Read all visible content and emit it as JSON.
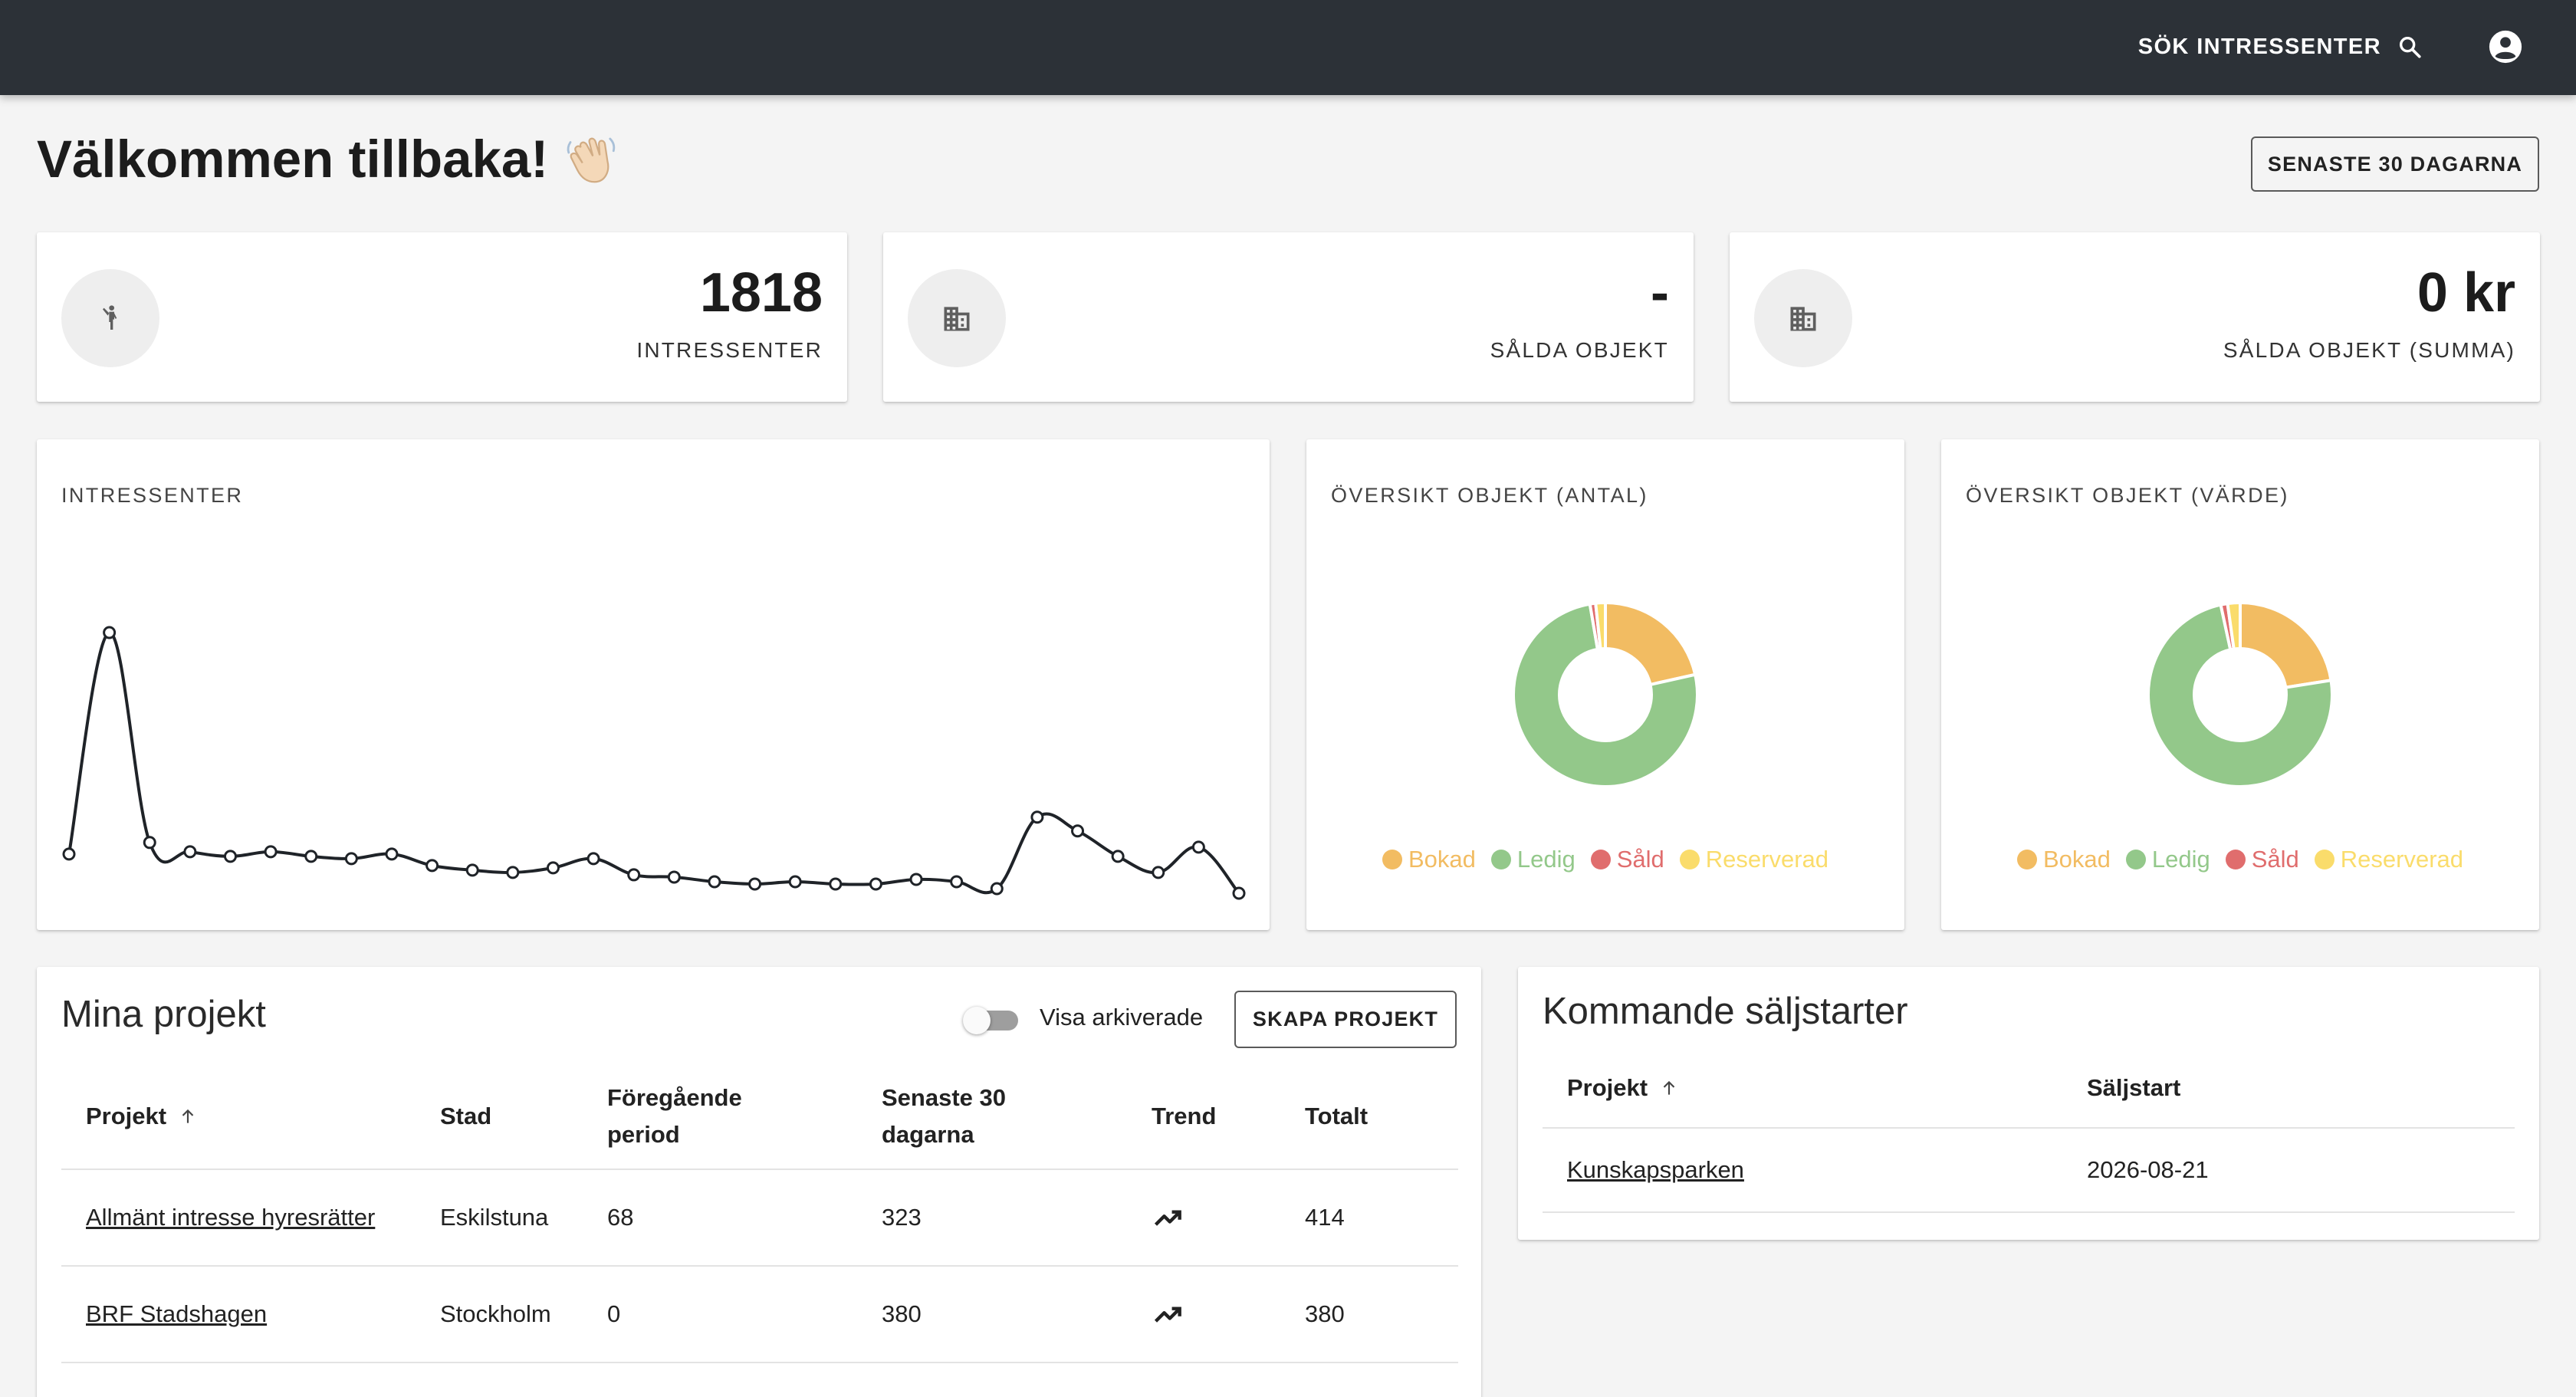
{
  "topbar": {
    "search_label": "SÖK INTRESSENTER",
    "search_icon": "search-icon",
    "account_icon": "account-circle-icon"
  },
  "welcome": {
    "title": "Välkommen tillbaka!",
    "emoji": "👋🏻"
  },
  "range_button": "SENASTE 30 DAGARNA",
  "stats": [
    {
      "icon": "person-waving-icon",
      "value": "1818",
      "label": "INTRESSENTER"
    },
    {
      "icon": "building-icon",
      "value": "-",
      "label": "SÅLDA OBJEKT"
    },
    {
      "icon": "building-icon",
      "value": "0 kr",
      "label": "SÅLDA OBJEKT (SUMMA)"
    }
  ],
  "colors": {
    "bokad": "#f2bc62",
    "ledig": "#93c88a",
    "sald": "#e06d6d",
    "reserverad": "#fadc6b",
    "topbar": "#2c3137"
  },
  "interest_chart": {
    "title": "INTRESSENTER"
  },
  "chart_data": [
    {
      "type": "line",
      "title": "INTRESSENTER",
      "x": [
        1,
        2,
        3,
        4,
        5,
        6,
        7,
        8,
        9,
        10,
        11,
        12,
        13,
        14,
        15,
        16,
        17,
        18,
        19,
        20,
        21,
        22,
        23,
        24,
        25,
        26,
        27,
        28,
        29,
        30
      ],
      "values": [
        5,
        101,
        10,
        6,
        4,
        6,
        4,
        3,
        5,
        0,
        -2,
        -3,
        -1,
        3,
        -4,
        -5,
        -7,
        -8,
        -7,
        -8,
        -8,
        -6,
        -7,
        -10,
        21,
        15,
        4,
        -3,
        8,
        -12
      ],
      "ylim": [
        -12,
        101
      ],
      "grid": false
    },
    {
      "type": "pie",
      "title": "ÖVERSIKT OBJEKT (ANTAL)",
      "labels": [
        "Bokad",
        "Ledig",
        "Såld",
        "Reserverad"
      ],
      "values": [
        21.5,
        75.8,
        1.0,
        1.7
      ],
      "legend": "bottom"
    },
    {
      "type": "pie",
      "title": "ÖVERSIKT OBJEKT (VÄRDE)",
      "labels": [
        "Bokad",
        "Ledig",
        "Såld",
        "Reserverad"
      ],
      "values": [
        22.5,
        74.1,
        1.2,
        2.2
      ],
      "legend": "bottom"
    }
  ],
  "donut_antal": {
    "title": "ÖVERSIKT OBJEKT (ANTAL)",
    "legend": [
      "Bokad",
      "Ledig",
      "Såld",
      "Reserverad"
    ]
  },
  "donut_varde": {
    "title": "ÖVERSIKT OBJEKT (VÄRDE)",
    "legend": [
      "Bokad",
      "Ledig",
      "Såld",
      "Reserverad"
    ]
  },
  "projects": {
    "title": "Mina projekt",
    "toggle_label": "Visa arkiverade",
    "create_button": "SKAPA PROJEKT",
    "columns": [
      "Projekt",
      "Stad",
      "Föregående period",
      "Senaste 30 dagarna",
      "Trend",
      "Totalt"
    ],
    "rows": [
      {
        "name": "Allmänt intresse hyresrätter",
        "city": "Eskilstuna",
        "previous": "68",
        "last30": "323",
        "trend": "trending-up-icon",
        "total": "414"
      },
      {
        "name": "BRF Stadshagen",
        "city": "Stockholm",
        "previous": "0",
        "last30": "380",
        "trend": "trending-up-icon",
        "total": "380"
      }
    ]
  },
  "sales_starts": {
    "title": "Kommande säljstarter",
    "columns": [
      "Projekt",
      "Säljstart"
    ],
    "rows": [
      {
        "name": "Kunskapsparken",
        "date": "2026-08-21"
      }
    ]
  }
}
